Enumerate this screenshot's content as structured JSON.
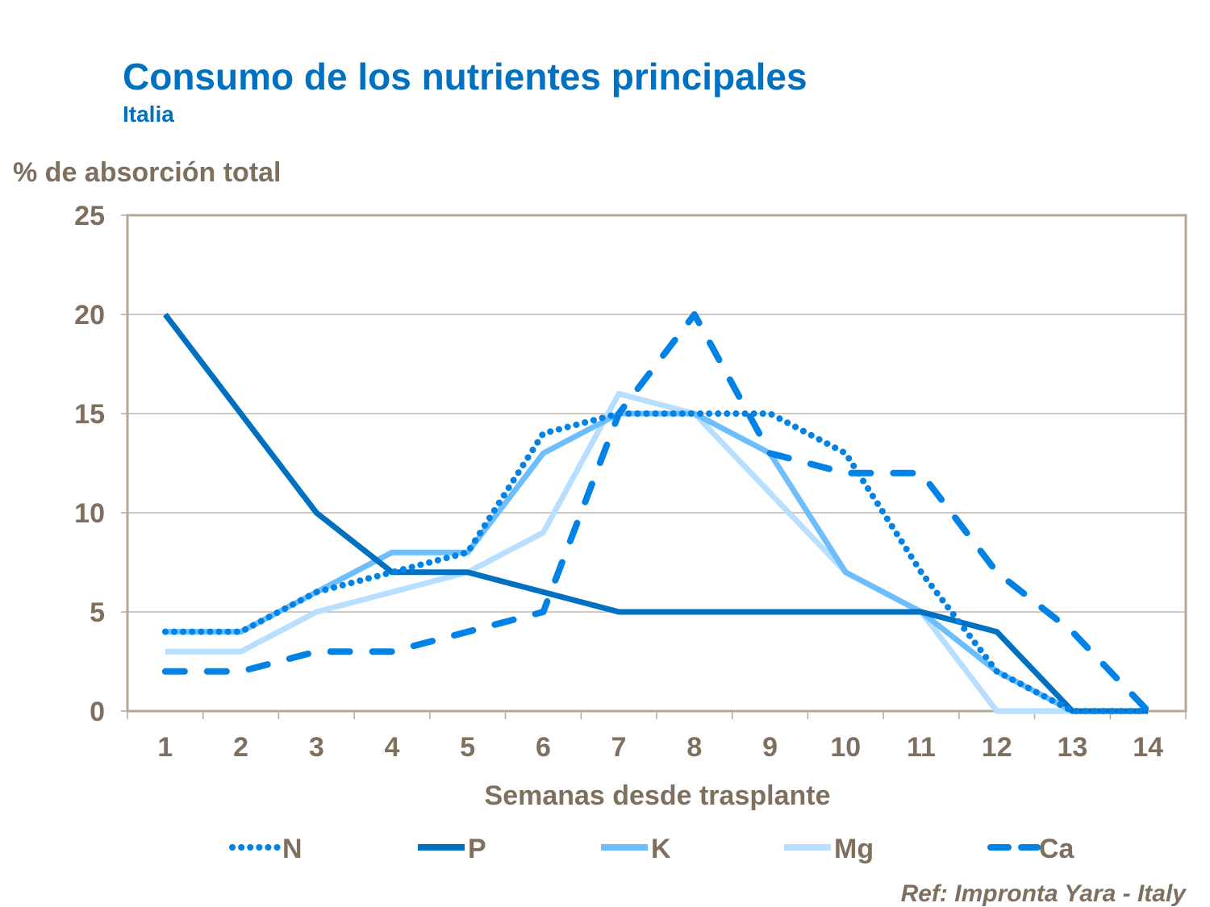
{
  "chart_data": {
    "type": "line",
    "title": "Consumo de los nutrientes principales",
    "subtitle": "Italia",
    "ylabel": "% de absorción total",
    "xlabel": "Semanas desde trasplante",
    "categories": [
      "1",
      "2",
      "3",
      "4",
      "5",
      "6",
      "7",
      "8",
      "9",
      "10",
      "11",
      "12",
      "13",
      "14"
    ],
    "ylim": [
      0,
      25
    ],
    "yticks": [
      0,
      5,
      10,
      15,
      20,
      25
    ],
    "grid": true,
    "legend_position": "bottom",
    "series": [
      {
        "name": "N",
        "color": "#0082E6",
        "style": "dotted",
        "values": [
          4,
          4,
          6,
          7,
          8,
          14,
          15,
          15,
          15,
          13,
          7,
          2,
          0,
          0
        ]
      },
      {
        "name": "P",
        "color": "#0070C0",
        "style": "solid",
        "values": [
          20,
          15,
          10,
          7,
          7,
          6,
          5,
          5,
          5,
          5,
          5,
          4,
          0,
          0
        ]
      },
      {
        "name": "K",
        "color": "#6DBEFF",
        "style": "solid",
        "values": [
          4,
          4,
          6,
          8,
          8,
          13,
          15,
          15,
          13,
          7,
          5,
          2,
          0,
          0
        ]
      },
      {
        "name": "Mg",
        "color": "#B8DFFF",
        "style": "solid",
        "values": [
          3,
          3,
          5,
          6,
          7,
          9,
          16,
          15,
          11,
          7,
          5,
          0,
          0,
          0
        ]
      },
      {
        "name": "Ca",
        "color": "#0082E6",
        "style": "dashed",
        "values": [
          2,
          2,
          3,
          3,
          4,
          5,
          15,
          20,
          13,
          12,
          12,
          7,
          4,
          0
        ]
      }
    ],
    "source": "Ref: Impronta Yara - Italy"
  }
}
